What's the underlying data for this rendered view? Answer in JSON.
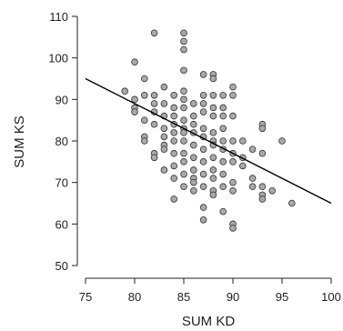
{
  "chart_data": {
    "type": "scatter",
    "title": "",
    "xlabel": "SUM KD",
    "ylabel": "SUM KS",
    "xlim": [
      75,
      100
    ],
    "ylim": [
      50,
      110
    ],
    "xticks": [
      75,
      80,
      85,
      90,
      95,
      100
    ],
    "yticks": [
      50,
      60,
      70,
      80,
      90,
      100,
      110
    ],
    "grid": false,
    "trendline": {
      "x": [
        75,
        100
      ],
      "y": [
        95,
        65
      ]
    },
    "colors": {
      "point_fill": "#a9a9a9",
      "point_stroke": "#333333",
      "line": "#000000",
      "axis": "#222222"
    },
    "points": [
      [
        79,
        92
      ],
      [
        80,
        99
      ],
      [
        80,
        90
      ],
      [
        80,
        88
      ],
      [
        80,
        87
      ],
      [
        81,
        95
      ],
      [
        81,
        91
      ],
      [
        81,
        85
      ],
      [
        81,
        81
      ],
      [
        81,
        80
      ],
      [
        82,
        106
      ],
      [
        82,
        91
      ],
      [
        82,
        89
      ],
      [
        82,
        87
      ],
      [
        82,
        84
      ],
      [
        82,
        77
      ],
      [
        82,
        76
      ],
      [
        83,
        93
      ],
      [
        83,
        89
      ],
      [
        83,
        86
      ],
      [
        83,
        83
      ],
      [
        83,
        81
      ],
      [
        83,
        79
      ],
      [
        83,
        78
      ],
      [
        83,
        73
      ],
      [
        84,
        91
      ],
      [
        84,
        88
      ],
      [
        84,
        86
      ],
      [
        84,
        84
      ],
      [
        84,
        82
      ],
      [
        84,
        80
      ],
      [
        84,
        77
      ],
      [
        84,
        74
      ],
      [
        84,
        71
      ],
      [
        84,
        66
      ],
      [
        85,
        106
      ],
      [
        85,
        104
      ],
      [
        85,
        102
      ],
      [
        85,
        97
      ],
      [
        85,
        92
      ],
      [
        85,
        90
      ],
      [
        85,
        88
      ],
      [
        85,
        85
      ],
      [
        85,
        83
      ],
      [
        85,
        82
      ],
      [
        85,
        80
      ],
      [
        85,
        77
      ],
      [
        85,
        75
      ],
      [
        85,
        72
      ],
      [
        85,
        69
      ],
      [
        86,
        89
      ],
      [
        86,
        86
      ],
      [
        86,
        84
      ],
      [
        86,
        82
      ],
      [
        86,
        79
      ],
      [
        86,
        76
      ],
      [
        86,
        73
      ],
      [
        86,
        71
      ],
      [
        86,
        70
      ],
      [
        86,
        68
      ],
      [
        87,
        96
      ],
      [
        87,
        91
      ],
      [
        87,
        89
      ],
      [
        87,
        87
      ],
      [
        87,
        83
      ],
      [
        87,
        81
      ],
      [
        87,
        78
      ],
      [
        87,
        75
      ],
      [
        87,
        72
      ],
      [
        87,
        69
      ],
      [
        87,
        64
      ],
      [
        87,
        61
      ],
      [
        88,
        96
      ],
      [
        88,
        95
      ],
      [
        88,
        91
      ],
      [
        88,
        88
      ],
      [
        88,
        86
      ],
      [
        88,
        82
      ],
      [
        88,
        80
      ],
      [
        88,
        79
      ],
      [
        88,
        76
      ],
      [
        88,
        73
      ],
      [
        88,
        71
      ],
      [
        88,
        68
      ],
      [
        88,
        67
      ],
      [
        89,
        91
      ],
      [
        89,
        88
      ],
      [
        89,
        86
      ],
      [
        89,
        83
      ],
      [
        89,
        80
      ],
      [
        89,
        78
      ],
      [
        89,
        75
      ],
      [
        89,
        72
      ],
      [
        89,
        69
      ],
      [
        89,
        63
      ],
      [
        90,
        93
      ],
      [
        90,
        91
      ],
      [
        90,
        86
      ],
      [
        90,
        80
      ],
      [
        90,
        77
      ],
      [
        90,
        75
      ],
      [
        90,
        70
      ],
      [
        90,
        68
      ],
      [
        90,
        60
      ],
      [
        90,
        59
      ],
      [
        91,
        80
      ],
      [
        91,
        76
      ],
      [
        91,
        74
      ],
      [
        92,
        78
      ],
      [
        92,
        71
      ],
      [
        92,
        69
      ],
      [
        93,
        84
      ],
      [
        93,
        83
      ],
      [
        93,
        77
      ],
      [
        93,
        69
      ],
      [
        93,
        67
      ],
      [
        93,
        66
      ],
      [
        94,
        68
      ],
      [
        95,
        80
      ],
      [
        96,
        65
      ]
    ]
  }
}
